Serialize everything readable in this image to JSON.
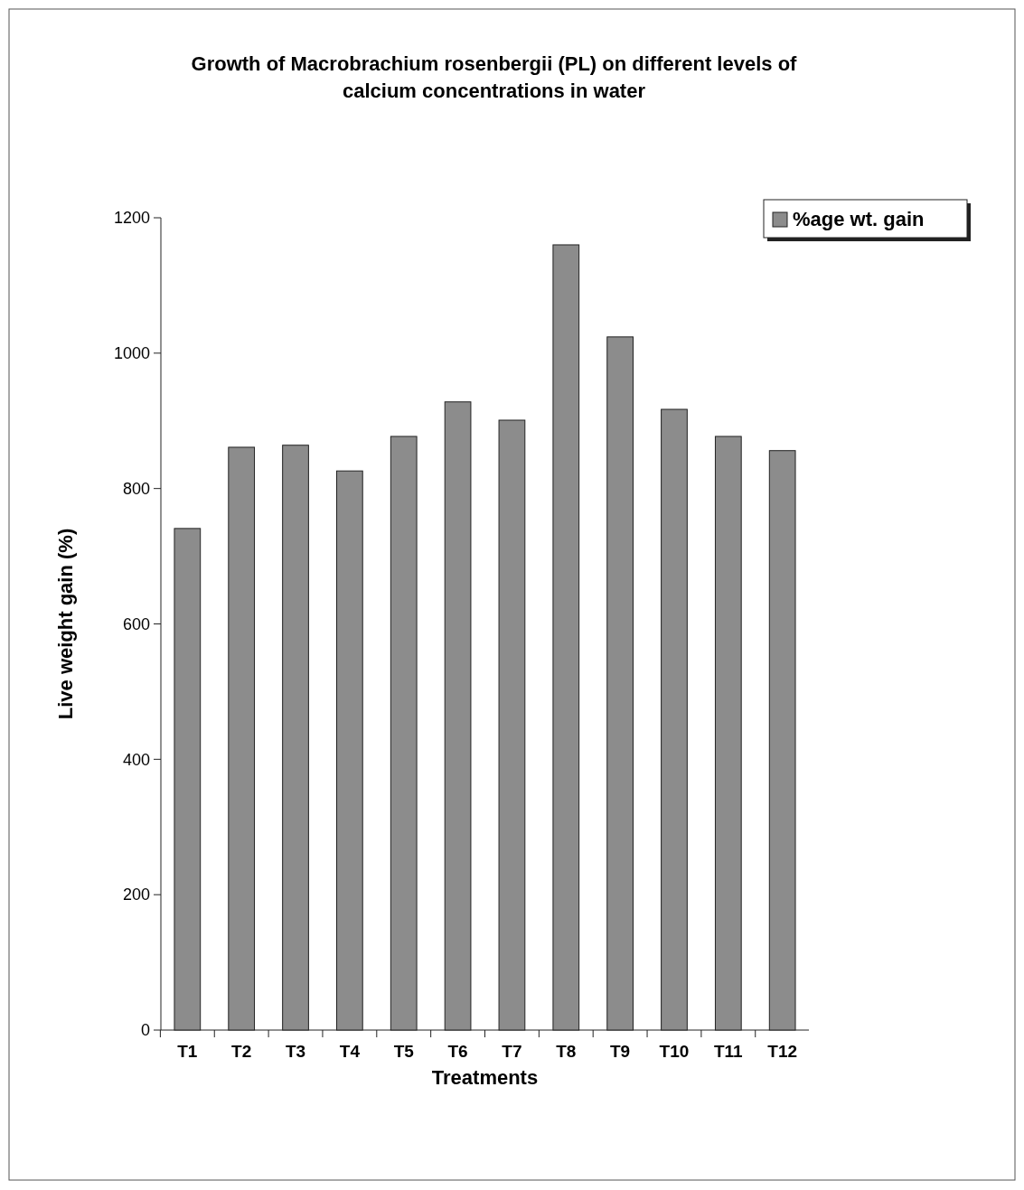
{
  "chart_data": {
    "type": "bar",
    "title": "Growth of Macrobrachium rosenbergii (PL) on different levels of calcium concentrations in water",
    "xlabel": "Treatments",
    "ylabel": "Live weight gain (%)",
    "categories": [
      "T1",
      "T2",
      "T3",
      "T4",
      "T5",
      "T6",
      "T7",
      "T8",
      "T9",
      "T10",
      "T11",
      "T12"
    ],
    "series": [
      {
        "name": "%age wt. gain",
        "color": "#8c8c8c",
        "values": [
          741,
          861,
          864,
          826,
          877,
          928,
          901,
          1160,
          1024,
          917,
          877,
          856
        ]
      }
    ],
    "ylim": [
      0,
      1200
    ],
    "yticks": [
      0,
      200,
      400,
      600,
      800,
      1000,
      1200
    ],
    "legend": "top right"
  }
}
